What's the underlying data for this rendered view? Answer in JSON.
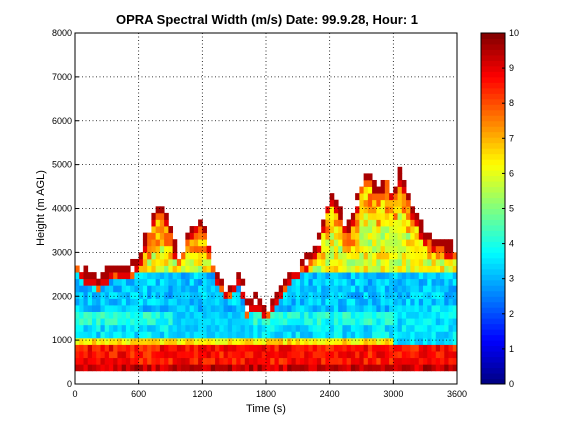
{
  "chart_data": {
    "type": "heatmap",
    "title": "OPRA Spectral Width (m/s)  Date: 99.9.28, Hour: 1",
    "xlabel": "Time (s)",
    "ylabel": "Height (m AGL)",
    "xlim": [
      0,
      3600
    ],
    "ylim": [
      0,
      8000
    ],
    "xticks": [
      "0",
      "600",
      "1200",
      "1800",
      "2400",
      "3000",
      "3600"
    ],
    "yticks": [
      "0",
      "1000",
      "2000",
      "3000",
      "4000",
      "5000",
      "6000",
      "7000",
      "8000"
    ],
    "grid": true,
    "colorbar": {
      "colormap": "jet",
      "clim": [
        0,
        10
      ],
      "ticks": [
        "0",
        "1",
        "2",
        "3",
        "4",
        "5",
        "6",
        "7",
        "8",
        "9",
        "10"
      ]
    },
    "x_bin_s": 40,
    "y_bin_m": 150,
    "cloud_top_profile": {
      "time_s": [
        0,
        120,
        240,
        360,
        480,
        600,
        660,
        720,
        780,
        840,
        900,
        960,
        1020,
        1080,
        1140,
        1200,
        1260,
        1320,
        1440,
        1560,
        1620,
        1680,
        1800,
        1920,
        2040,
        2160,
        2280,
        2340,
        2400,
        2460,
        2520,
        2580,
        2640,
        2700,
        2760,
        2820,
        2880,
        2940,
        3000,
        3060,
        3120,
        3180,
        3240,
        3300,
        3420,
        3600
      ],
      "height_m": [
        2900,
        2600,
        2500,
        2800,
        2700,
        2900,
        3400,
        3800,
        4100,
        4000,
        3700,
        3000,
        3200,
        3600,
        3800,
        3900,
        3300,
        2700,
        2200,
        2600,
        1900,
        2100,
        1800,
        2200,
        2700,
        2900,
        3200,
        3800,
        4400,
        4200,
        3900,
        3700,
        4100,
        4700,
        4900,
        4600,
        4500,
        4800,
        4400,
        4900,
        4500,
        4100,
        3800,
        3500,
        3300,
        3200
      ]
    },
    "boundary_layer_top_m": 2800,
    "low_level_layers": [
      {
        "bottom_m": 300,
        "top_m": 500,
        "value": 9.3
      },
      {
        "bottom_m": 500,
        "top_m": 900,
        "value": 8.6
      },
      {
        "bottom_m": 900,
        "top_m": 1000,
        "value": 6.5
      },
      {
        "bottom_m": 1000,
        "top_m": 1300,
        "value": 3.5
      },
      {
        "bottom_m": 1300,
        "top_m": 1650,
        "value": 4.0
      },
      {
        "bottom_m": 1650,
        "top_m": 2600,
        "value": 3.2
      }
    ]
  }
}
